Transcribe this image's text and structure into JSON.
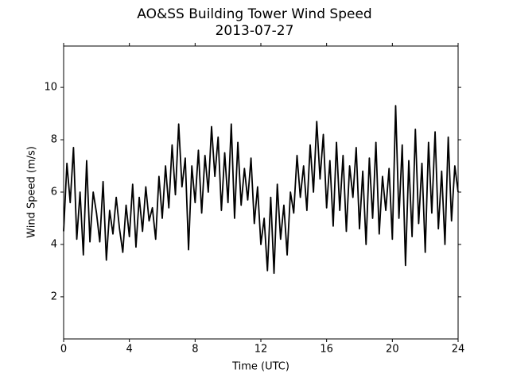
{
  "chart_data": {
    "type": "line",
    "title": "AO&SS Building Tower Wind Speed",
    "subtitle": "2013-07-27",
    "x_label": "Time (UTC)",
    "y_label": "Wind Speed (m/s)",
    "x": [
      0.0,
      0.2,
      0.4,
      0.6,
      0.8,
      1.0,
      1.2,
      1.4,
      1.6,
      1.8,
      2.0,
      2.2,
      2.4,
      2.6,
      2.8,
      3.0,
      3.2,
      3.4,
      3.6,
      3.8,
      4.0,
      4.2,
      4.4,
      4.6,
      4.8,
      5.0,
      5.2,
      5.4,
      5.6,
      5.8,
      6.0,
      6.2,
      6.4,
      6.6,
      6.8,
      7.0,
      7.2,
      7.4,
      7.6,
      7.8,
      8.0,
      8.2,
      8.4,
      8.6,
      8.8,
      9.0,
      9.2,
      9.4,
      9.6,
      9.8,
      10.0,
      10.2,
      10.4,
      10.6,
      10.8,
      11.0,
      11.2,
      11.4,
      11.6,
      11.8,
      12.0,
      12.2,
      12.4,
      12.6,
      12.8,
      13.0,
      13.2,
      13.4,
      13.6,
      13.8,
      14.0,
      14.2,
      14.4,
      14.6,
      14.8,
      15.0,
      15.2,
      15.4,
      15.6,
      15.8,
      16.0,
      16.2,
      16.4,
      16.6,
      16.8,
      17.0,
      17.2,
      17.4,
      17.6,
      17.8,
      18.0,
      18.2,
      18.4,
      18.6,
      18.8,
      19.0,
      19.2,
      19.4,
      19.6,
      19.8,
      20.0,
      20.2,
      20.4,
      20.6,
      20.8,
      21.0,
      21.2,
      21.4,
      21.6,
      21.8,
      22.0,
      22.2,
      22.4,
      22.6,
      22.8,
      23.0,
      23.2,
      23.4,
      23.6,
      23.8,
      24.0
    ],
    "series": [
      {
        "name": "Wind Speed",
        "color": "#000000",
        "values": [
          4.5,
          7.1,
          5.6,
          7.7,
          4.2,
          6.0,
          3.6,
          7.2,
          4.1,
          6.0,
          5.2,
          4.1,
          6.4,
          3.4,
          5.3,
          4.4,
          5.8,
          4.6,
          3.7,
          5.5,
          4.3,
          6.3,
          3.9,
          5.8,
          4.5,
          6.2,
          4.9,
          5.4,
          4.2,
          6.6,
          5.0,
          7.0,
          5.4,
          7.8,
          5.9,
          8.6,
          6.2,
          7.3,
          3.8,
          7.0,
          5.6,
          7.6,
          5.2,
          7.4,
          6.0,
          8.5,
          6.6,
          8.1,
          5.3,
          7.5,
          5.6,
          8.6,
          5.0,
          7.9,
          5.5,
          6.9,
          5.7,
          7.3,
          4.8,
          6.2,
          4.0,
          5.0,
          3.0,
          5.8,
          2.9,
          6.3,
          4.2,
          5.5,
          3.6,
          6.0,
          5.2,
          7.4,
          5.8,
          7.0,
          5.3,
          7.8,
          6.0,
          8.7,
          6.5,
          8.2,
          5.4,
          7.2,
          4.7,
          7.9,
          5.3,
          7.4,
          4.5,
          7.0,
          5.8,
          7.7,
          4.6,
          6.8,
          4.0,
          7.3,
          5.0,
          7.9,
          4.4,
          6.6,
          5.3,
          6.9,
          4.2,
          9.3,
          5.0,
          7.8,
          3.2,
          7.2,
          4.3,
          8.4,
          4.8,
          7.1,
          3.7,
          7.9,
          5.2,
          8.3,
          4.6,
          6.8,
          4.0,
          8.1,
          4.9,
          7.0,
          6.0
        ]
      }
    ],
    "xlim": [
      0,
      24
    ],
    "xticks": [
      0,
      4,
      8,
      12,
      16,
      20,
      24
    ],
    "ylim": [
      0.39,
      11.58
    ],
    "yticks": [
      2,
      4,
      6,
      8,
      10
    ],
    "grid": false
  }
}
